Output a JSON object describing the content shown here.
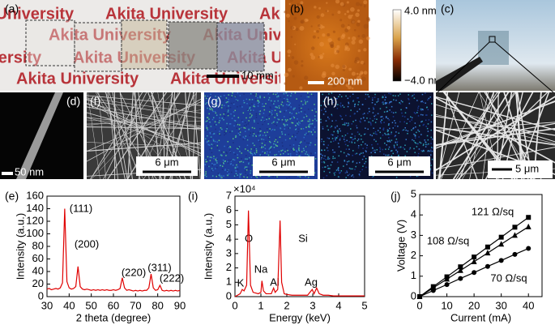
{
  "panels": {
    "a": {
      "label": "(a)",
      "watermark": "Akita University",
      "scale_bar": "10 mm"
    },
    "b": {
      "label": "(b)",
      "colorbar_max": "4.0 nm",
      "colorbar_min": "−4.0 nm",
      "scale_bar": "200 nm"
    },
    "c": {
      "label": "(c)",
      "scale_bar": "5 μm"
    },
    "d": {
      "label": "(d)",
      "scale_bar": "50 nm"
    },
    "f": {
      "label": "(f)",
      "scale_bar": "6 μm"
    },
    "g": {
      "label": "(g)",
      "scale_bar": "6 μm"
    },
    "h": {
      "label": "(h)",
      "scale_bar": "6 μm"
    }
  },
  "chart_data": [
    {
      "type": "line",
      "label": "(e)",
      "xlabel": "2 theta (degree)",
      "ylabel": "Intensity (a.u.)",
      "xlim": [
        30,
        90
      ],
      "ylim": [
        0,
        160
      ],
      "xticks": [
        30,
        40,
        50,
        60,
        70,
        80,
        90
      ],
      "yticks": [
        0,
        20,
        40,
        60,
        80,
        100,
        120,
        140,
        160
      ],
      "annotations": [
        "(111)",
        "(200)",
        "(220)",
        "(311)",
        "(222)"
      ],
      "x": [
        30,
        31,
        32,
        33,
        34,
        35,
        36,
        37,
        38,
        39,
        40,
        41,
        42,
        43,
        44,
        45,
        46,
        47,
        48,
        49,
        50,
        51,
        52,
        53,
        54,
        55,
        56,
        57,
        58,
        59,
        60,
        61,
        62,
        63,
        64,
        65,
        66,
        67,
        68,
        69,
        70,
        71,
        72,
        73,
        74,
        75,
        76,
        77,
        78,
        79,
        80,
        81,
        82,
        83,
        84,
        85,
        86,
        87,
        88,
        89,
        90
      ],
      "series": [
        {
          "color": "#e00000",
          "values": [
            12,
            13,
            11,
            12,
            13,
            12,
            14,
            22,
            140,
            24,
            14,
            12,
            13,
            16,
            48,
            16,
            12,
            11,
            12,
            11,
            10,
            11,
            10,
            11,
            10,
            11,
            10,
            11,
            10,
            10,
            11,
            10,
            11,
            13,
            30,
            14,
            10,
            11,
            10,
            9,
            10,
            9,
            10,
            9,
            10,
            10,
            14,
            36,
            14,
            10,
            11,
            18,
            10,
            9,
            10,
            9,
            10,
            9,
            10,
            9,
            10
          ]
        }
      ]
    },
    {
      "type": "line",
      "label": "(i)",
      "xlabel": "Energy (keV)",
      "ylabel": "Intensity (a.u.)",
      "multiplier": "×10⁴",
      "xlim": [
        0,
        5
      ],
      "ylim": [
        0,
        7
      ],
      "xticks": [
        0,
        1,
        2,
        3,
        4,
        5
      ],
      "yticks": [
        0,
        1,
        2,
        3,
        4,
        5,
        6,
        7
      ],
      "annotations": [
        "O",
        "Na",
        "Al",
        "Si",
        "Ag",
        "K"
      ],
      "x": [
        0,
        0.1,
        0.2,
        0.28,
        0.35,
        0.45,
        0.52,
        0.6,
        0.7,
        0.8,
        0.9,
        1.0,
        1.04,
        1.1,
        1.2,
        1.3,
        1.4,
        1.49,
        1.55,
        1.65,
        1.74,
        1.8,
        1.9,
        2.0,
        2.2,
        2.4,
        2.6,
        2.8,
        2.98,
        3.05,
        3.15,
        3.25,
        3.4,
        3.6,
        3.8,
        4.0,
        4.2,
        4.4,
        4.6,
        4.8,
        5.0
      ],
      "series": [
        {
          "color": "#e00000",
          "values": [
            0,
            0.1,
            0.2,
            0.5,
            0.4,
            0.8,
            6.0,
            0.8,
            0.3,
            0.25,
            0.2,
            0.3,
            1.1,
            0.4,
            0.2,
            0.2,
            0.2,
            0.6,
            0.3,
            0.5,
            5.3,
            1.0,
            0.2,
            0.15,
            0.1,
            0.1,
            0.1,
            0.1,
            0.5,
            0.2,
            0.6,
            0.2,
            0.1,
            0.1,
            0.05,
            0.05,
            0.05,
            0.05,
            0.05,
            0.05,
            0.05
          ]
        }
      ]
    },
    {
      "type": "line",
      "label": "(j)",
      "xlabel": "Current (mA)",
      "ylabel": "Voltage (V)",
      "xlim": [
        0,
        45
      ],
      "ylim": [
        0,
        5
      ],
      "xticks": [
        0,
        10,
        20,
        30,
        40
      ],
      "yticks": [
        0,
        1,
        2,
        3,
        4,
        5
      ],
      "x": [
        0,
        5,
        10,
        15,
        20,
        25,
        30,
        35,
        40
      ],
      "series": [
        {
          "name": "121 Ω/sq",
          "color": "#000000",
          "marker": "square",
          "values": [
            0,
            0.49,
            0.97,
            1.46,
            1.94,
            2.43,
            2.91,
            3.4,
            3.88
          ]
        },
        {
          "name": "108 Ω/sq",
          "color": "#000000",
          "marker": "triangle",
          "values": [
            0,
            0.43,
            0.86,
            1.28,
            1.71,
            2.14,
            2.57,
            3.0,
            3.42
          ]
        },
        {
          "name": "70 Ω/sq",
          "color": "#000000",
          "marker": "circle",
          "values": [
            0,
            0.3,
            0.59,
            0.89,
            1.18,
            1.48,
            1.77,
            2.07,
            2.36
          ]
        }
      ]
    }
  ]
}
